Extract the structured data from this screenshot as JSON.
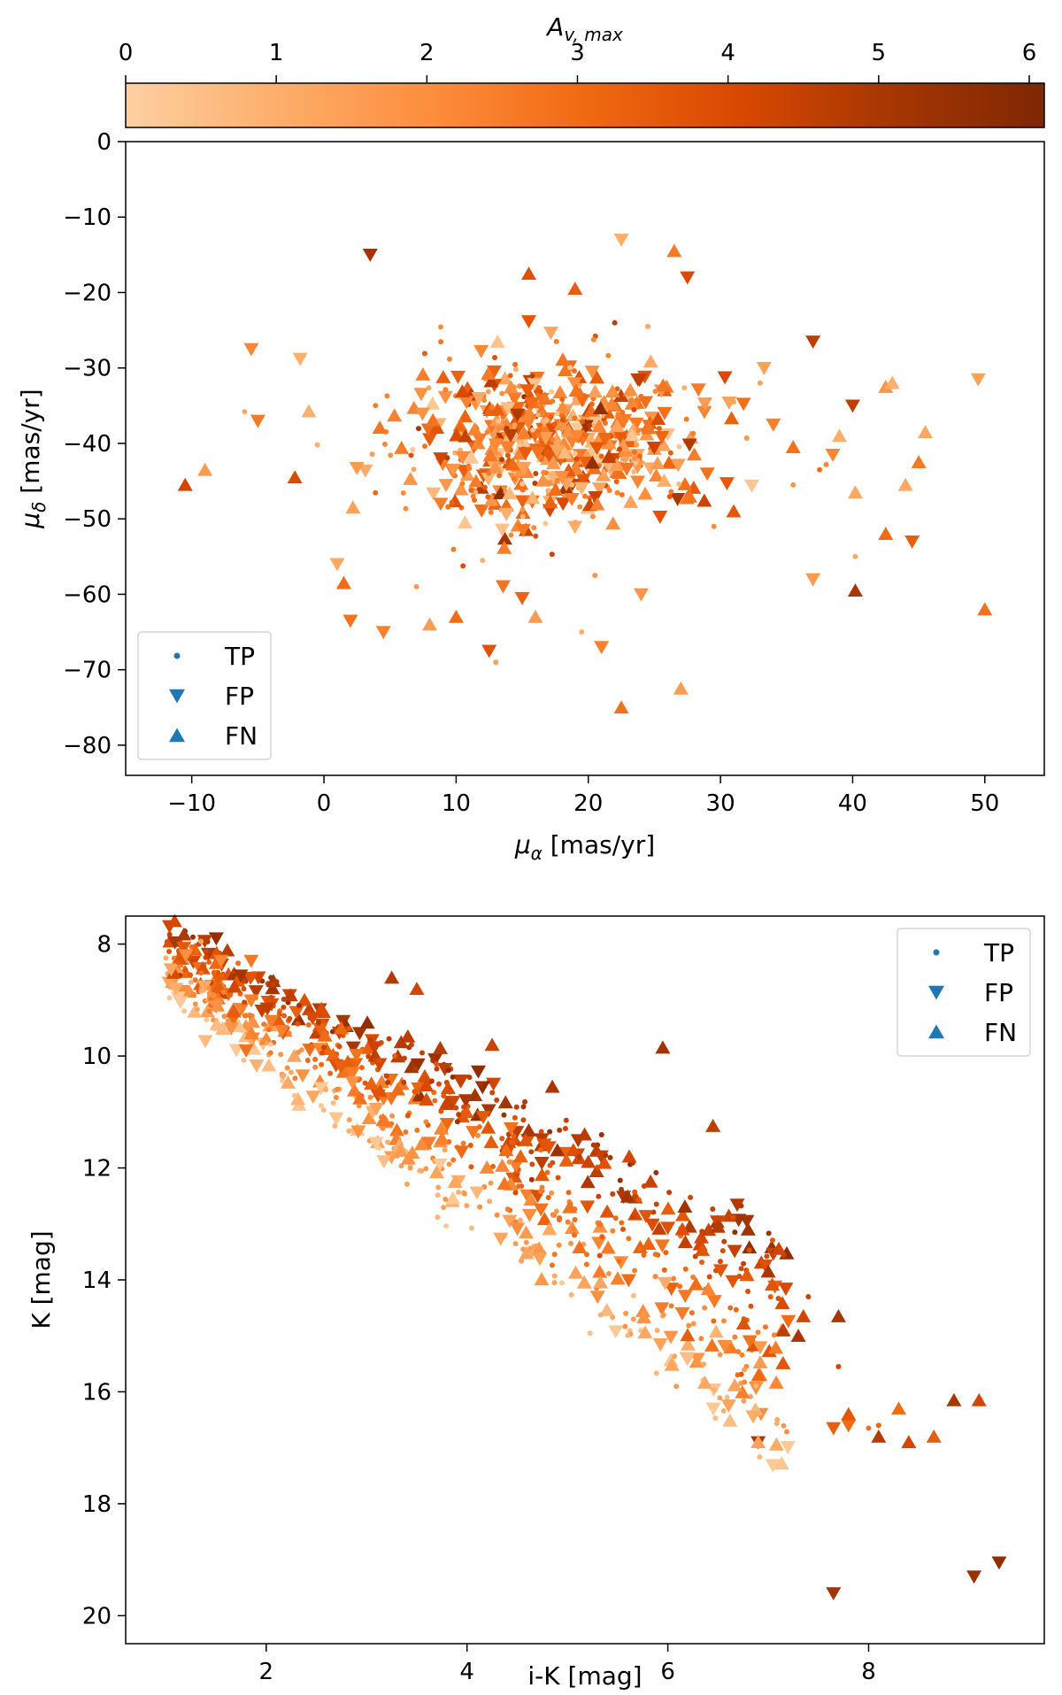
{
  "colorbar": {
    "label_base": "A",
    "label_sub": "v, max",
    "ticks": [
      "0",
      "1",
      "2",
      "3",
      "4",
      "5",
      "6"
    ],
    "range": [
      0,
      6.1
    ],
    "colors": [
      "#fdd0a2",
      "#fdae6b",
      "#fd8d3c",
      "#f16913",
      "#d94801",
      "#a63603",
      "#7f2704"
    ]
  },
  "legend_marker_color": "#1f77b4",
  "chart_data": [
    {
      "type": "scatter",
      "title": "",
      "xlabel_base": "μ",
      "xlabel_sub": "α",
      "xlabel_unit": " [mas/yr]",
      "ylabel_base": "μ",
      "ylabel_sub": "δ",
      "ylabel_unit": " [mas/yr]",
      "xlim": [
        -15,
        54.5
      ],
      "ylim": [
        -84,
        0
      ],
      "y_inverted": false,
      "xticks": [
        -10,
        0,
        10,
        20,
        30,
        40,
        50
      ],
      "xtick_labels": [
        "−10",
        "0",
        "10",
        "20",
        "30",
        "40",
        "50"
      ],
      "yticks": [
        0,
        -10,
        -20,
        -30,
        -40,
        -50,
        -60,
        -70,
        -80
      ],
      "ytick_labels": [
        "0",
        "−10",
        "−20",
        "−30",
        "−40",
        "−50",
        "−60",
        "−70",
        "−80"
      ],
      "grid": false,
      "legend": {
        "position": "lower-left",
        "entries": [
          {
            "marker": "dot",
            "label": "TP"
          },
          {
            "marker": "tri-down",
            "label": "FP"
          },
          {
            "marker": "tri-up",
            "label": "FN"
          }
        ]
      },
      "cluster": {
        "center": [
          17,
          -40
        ],
        "spread": [
          5.5,
          6
        ],
        "count": 620,
        "av_mean": 2.4
      },
      "series": [
        {
          "name": "FP",
          "marker": "tri-down",
          "points": [
            [
              3.5,
              -15,
              5.2
            ],
            [
              22.5,
              -13,
              1.0
            ],
            [
              27.5,
              -18,
              4.0
            ],
            [
              37,
              -26.5,
              4.6
            ],
            [
              49.5,
              -31.5,
              1.4
            ],
            [
              -5.5,
              -27.5,
              2.2
            ],
            [
              -1.8,
              -28.8,
              1.0
            ],
            [
              -5,
              -37,
              2.6
            ],
            [
              1,
              -56,
              1.2
            ],
            [
              2,
              -63.5,
              2.8
            ],
            [
              4.5,
              -65,
              2.4
            ],
            [
              12.5,
              -67.5,
              3.8
            ],
            [
              21,
              -67,
              2.4
            ],
            [
              37,
              -58,
              1.6
            ],
            [
              44.5,
              -53,
              3.4
            ],
            [
              40,
              -35,
              4.6
            ],
            [
              34,
              -37.5,
              2.4
            ],
            [
              38.5,
              -41.5,
              2.2
            ],
            [
              15,
              -60.5,
              3.2
            ],
            [
              24,
              -60,
              1.8
            ],
            [
              15.5,
              -23.8,
              3.6
            ],
            [
              29,
              -44,
              2.8
            ],
            [
              33.3,
              -30,
              1.4
            ]
          ]
        },
        {
          "name": "FN",
          "marker": "tri-up",
          "points": [
            [
              -10.5,
              -45.5,
              4.2
            ],
            [
              -9,
              -43.5,
              1.6
            ],
            [
              -2.2,
              -44.5,
              4.0
            ],
            [
              1.5,
              -58.5,
              3.0
            ],
            [
              2.2,
              -48.5,
              1.4
            ],
            [
              10,
              -63,
              3.0
            ],
            [
              8,
              -64,
              1.6
            ],
            [
              15.5,
              -17.5,
              3.8
            ],
            [
              19,
              -19.5,
              3.4
            ],
            [
              26.5,
              -14.5,
              2.6
            ],
            [
              42.5,
              -32.5,
              1.8
            ],
            [
              45.5,
              -38.5,
              1.2
            ],
            [
              44,
              -45.5,
              1.2
            ],
            [
              45,
              -42.5,
              2.6
            ],
            [
              40.2,
              -46.5,
              1.2
            ],
            [
              40.2,
              -59.5,
              5.0
            ],
            [
              42.5,
              -52,
              3.0
            ],
            [
              50,
              -62,
              2.8
            ],
            [
              22.5,
              -75,
              2.8
            ],
            [
              27,
              -72.5,
              1.6
            ],
            [
              16,
              -63,
              1.6
            ],
            [
              31,
              -49,
              3.6
            ],
            [
              35.5,
              -40.5,
              2.8
            ],
            [
              43,
              -32,
              1.0
            ],
            [
              39,
              -39,
              1.0
            ]
          ]
        },
        {
          "name": "TP",
          "marker": "dot",
          "points": [
            [
              -6,
              -35.8,
              1.2
            ],
            [
              -0.5,
              -40.2,
              1.0
            ],
            [
              13,
              -69,
              1.4
            ],
            [
              19.5,
              -65,
              1.0
            ],
            [
              40.2,
              -55,
              1.2
            ],
            [
              38,
              -42.8,
              2.2
            ],
            [
              37.5,
              -43.5,
              3.0
            ],
            [
              35.5,
              -45.5,
              1.8
            ],
            [
              24.5,
              -24.5,
              1.2
            ],
            [
              20.5,
              -57.5,
              1.8
            ],
            [
              12,
              -55.5,
              1.0
            ],
            [
              33,
              -32,
              1.4
            ],
            [
              31,
              -34.5,
              1.2
            ],
            [
              7,
              -59,
              1.6
            ],
            [
              22,
              -24,
              4.6
            ],
            [
              29.5,
              -51,
              2.0
            ]
          ]
        }
      ]
    },
    {
      "type": "scatter",
      "title": "",
      "xlabel": "i-K [mag]",
      "ylabel": "K [mag]",
      "xlim": [
        0.6,
        9.75
      ],
      "ylim": [
        20.5,
        7.5
      ],
      "y_inverted": true,
      "xticks": [
        2,
        4,
        6,
        8
      ],
      "xtick_labels": [
        "2",
        "4",
        "6",
        "8"
      ],
      "yticks": [
        8,
        10,
        12,
        14,
        16,
        18,
        20
      ],
      "ytick_labels": [
        "8",
        "10",
        "12",
        "14",
        "16",
        "18",
        "20"
      ],
      "grid": false,
      "legend": {
        "position": "upper-right",
        "entries": [
          {
            "marker": "dot",
            "label": "TP"
          },
          {
            "marker": "tri-down",
            "label": "FP"
          },
          {
            "marker": "tri-up",
            "label": "FN"
          }
        ]
      },
      "cmd_band": {
        "count": 900
      },
      "series": [
        {
          "name": "FP",
          "marker": "tri-down",
          "points": [
            [
              1.2,
              8.2,
              2.0
            ],
            [
              1.55,
              8.3,
              2.2
            ],
            [
              1.85,
              8.3,
              2.6
            ],
            [
              1.1,
              8.8,
              1.0
            ],
            [
              1.8,
              9.9,
              2.8
            ],
            [
              6.9,
              16.9,
              5.0
            ],
            [
              7.65,
              19.6,
              5.2
            ],
            [
              9.05,
              19.3,
              5.4
            ],
            [
              9.3,
              19.05,
              5.6
            ],
            [
              7.8,
              16.6,
              3.0
            ],
            [
              7.65,
              16.65,
              3.4
            ]
          ]
        },
        {
          "name": "FN",
          "marker": "tri-up",
          "points": [
            [
              3.25,
              8.6,
              4.8
            ],
            [
              3.5,
              8.8,
              4.2
            ],
            [
              6.9,
              16.9,
              1.4
            ],
            [
              7.8,
              16.4,
              3.6
            ],
            [
              8.1,
              16.8,
              4.8
            ],
            [
              8.3,
              16.3,
              3.0
            ],
            [
              8.4,
              16.9,
              4.2
            ],
            [
              8.65,
              16.8,
              3.4
            ],
            [
              8.85,
              16.15,
              5.0
            ],
            [
              9.1,
              16.15,
              4.2
            ],
            [
              5.95,
              9.85,
              5.2
            ],
            [
              4.85,
              10.55,
              5.0
            ],
            [
              4.25,
              9.8,
              4.4
            ],
            [
              6.45,
              11.25,
              4.6
            ],
            [
              7.35,
              14.65,
              4.2
            ],
            [
              7.7,
              14.65,
              5.0
            ],
            [
              7.3,
              15.0,
              5.0
            ],
            [
              7.15,
              14.9,
              4.6
            ],
            [
              7.0,
              13.85,
              5.0
            ],
            [
              6.5,
              13.05,
              4.8
            ],
            [
              6.8,
              13.1,
              5.2
            ]
          ]
        },
        {
          "name": "TP",
          "marker": "dot",
          "points": [
            [
              1.35,
              7.95,
              1.2
            ],
            [
              1.0,
              8.25,
              1.0
            ],
            [
              7.7,
              15.55,
              4.2
            ],
            [
              7.4,
              14.3,
              4.4
            ],
            [
              8.1,
              16.6,
              3.2
            ],
            [
              8.0,
              16.65,
              2.8
            ]
          ]
        }
      ]
    }
  ]
}
